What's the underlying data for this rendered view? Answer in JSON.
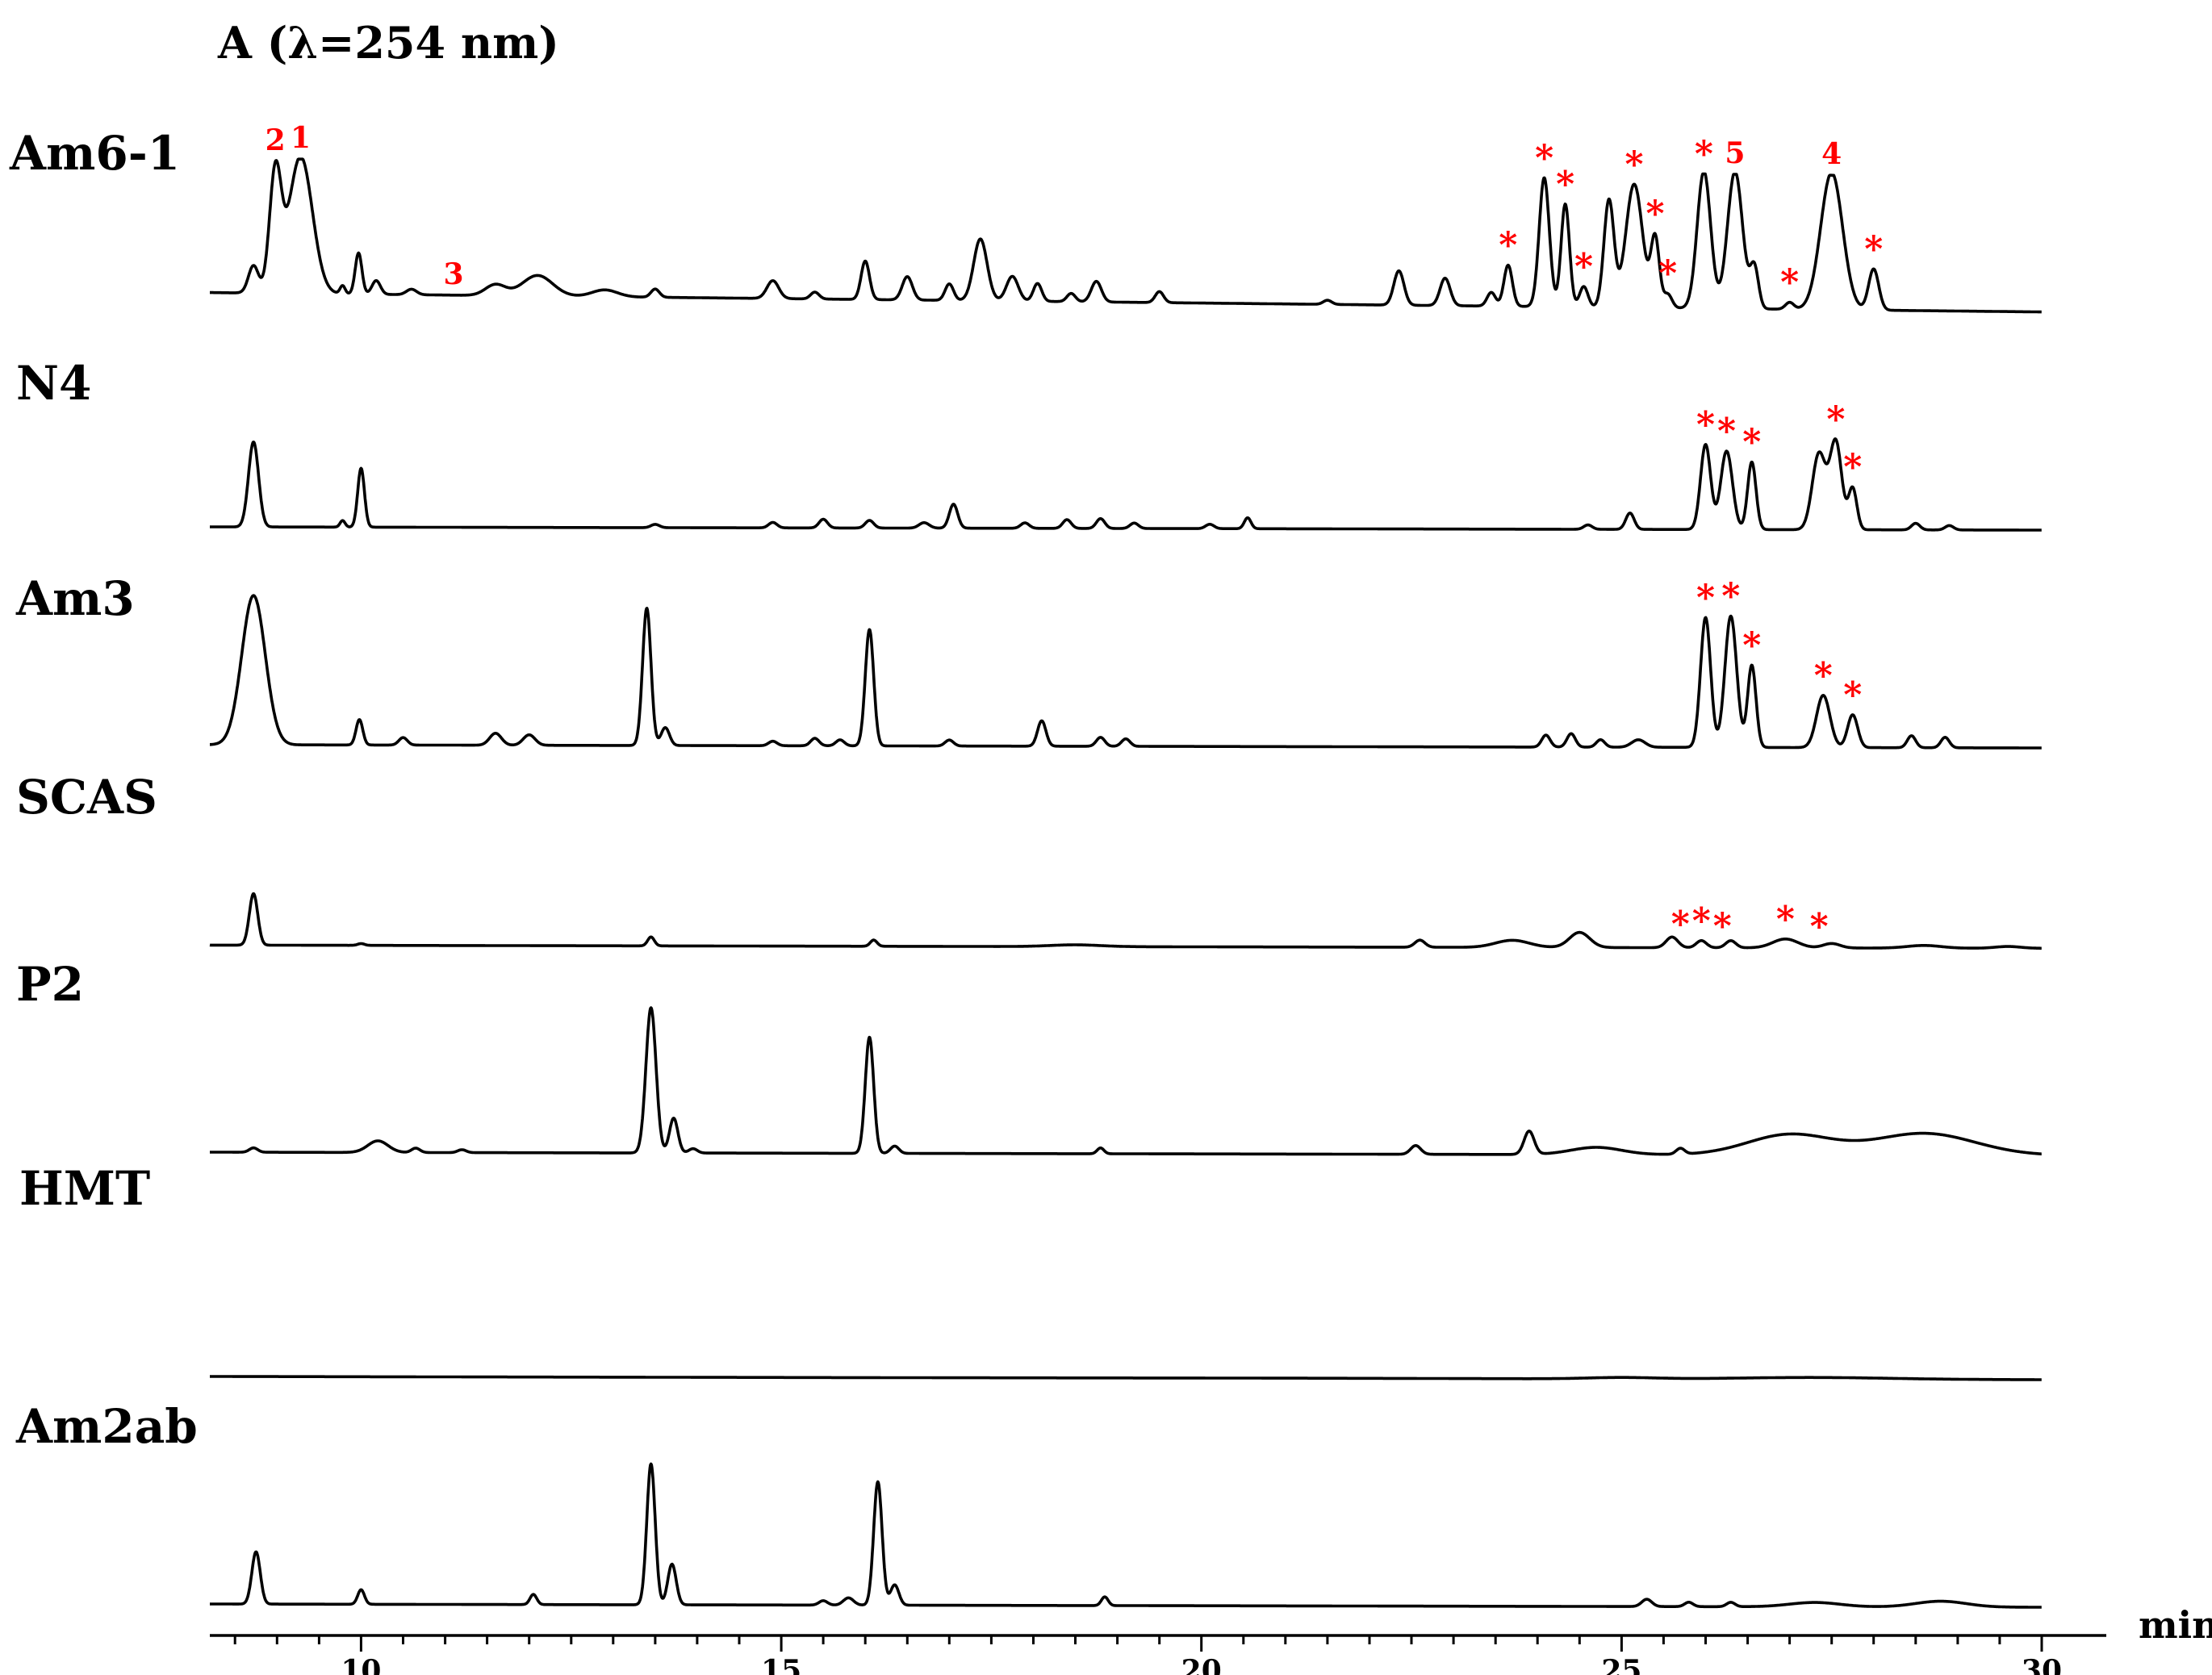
{
  "chart_data": {
    "type": "line",
    "title": "A (λ=254 nm)",
    "xlabel": "min",
    "ylabel": "",
    "xlim": [
      8.2,
      30
    ],
    "x_ticks": [
      10,
      15,
      20,
      25,
      30
    ],
    "x_tick_labels": [
      "10",
      "15",
      "20",
      "25",
      "30"
    ],
    "grid": false,
    "legend": "none",
    "colors": {
      "trace": "#000000",
      "annotation": "#ff0000"
    },
    "series": [
      {
        "name": "Am6-1",
        "baseline": 0.02,
        "peaks": [
          [
            8.72,
            0.2,
            0.06
          ],
          [
            8.98,
            0.86,
            0.07
          ],
          [
            9.28,
            1.0,
            0.14
          ],
          [
            9.78,
            0.06,
            0.03
          ],
          [
            9.97,
            0.3,
            0.04
          ],
          [
            10.18,
            0.1,
            0.05
          ],
          [
            10.6,
            0.04,
            0.06
          ],
          [
            11.6,
            0.08,
            0.12
          ],
          [
            12.1,
            0.15,
            0.18
          ],
          [
            12.9,
            0.05,
            0.15
          ],
          [
            13.5,
            0.06,
            0.05
          ],
          [
            14.9,
            0.13,
            0.07
          ],
          [
            15.4,
            0.05,
            0.05
          ],
          [
            16.0,
            0.28,
            0.05
          ],
          [
            16.5,
            0.17,
            0.06
          ],
          [
            17.0,
            0.12,
            0.05
          ],
          [
            17.37,
            0.45,
            0.08
          ],
          [
            17.75,
            0.18,
            0.07
          ],
          [
            18.05,
            0.13,
            0.05
          ],
          [
            18.45,
            0.06,
            0.05
          ],
          [
            18.75,
            0.15,
            0.06
          ],
          [
            19.5,
            0.08,
            0.05
          ],
          [
            21.5,
            0.03,
            0.05
          ],
          [
            22.35,
            0.25,
            0.06
          ],
          [
            22.9,
            0.2,
            0.06
          ],
          [
            23.45,
            0.1,
            0.05
          ],
          [
            23.65,
            0.3,
            0.05
          ],
          [
            24.08,
            0.94,
            0.06
          ],
          [
            24.33,
            0.75,
            0.05
          ],
          [
            24.55,
            0.15,
            0.05
          ],
          [
            24.85,
            0.78,
            0.06
          ],
          [
            25.15,
            0.9,
            0.1
          ],
          [
            25.4,
            0.5,
            0.05
          ],
          [
            25.55,
            0.1,
            0.05
          ],
          [
            25.98,
            1.0,
            0.08
          ],
          [
            26.35,
            1.0,
            0.09
          ],
          [
            26.58,
            0.3,
            0.05
          ],
          [
            27.0,
            0.05,
            0.05
          ],
          [
            27.5,
            1.0,
            0.13
          ],
          [
            28.0,
            0.3,
            0.06
          ]
        ]
      },
      {
        "name": "N4",
        "baseline": 0.0,
        "peaks": [
          [
            8.72,
            0.78,
            0.06
          ],
          [
            9.78,
            0.06,
            0.03
          ],
          [
            10.0,
            0.54,
            0.04
          ],
          [
            13.5,
            0.03,
            0.05
          ],
          [
            14.9,
            0.05,
            0.05
          ],
          [
            15.5,
            0.08,
            0.05
          ],
          [
            16.05,
            0.07,
            0.05
          ],
          [
            16.7,
            0.05,
            0.06
          ],
          [
            17.05,
            0.22,
            0.05
          ],
          [
            17.9,
            0.05,
            0.05
          ],
          [
            18.4,
            0.08,
            0.05
          ],
          [
            18.8,
            0.09,
            0.05
          ],
          [
            19.2,
            0.05,
            0.05
          ],
          [
            20.1,
            0.04,
            0.05
          ],
          [
            20.55,
            0.1,
            0.04
          ],
          [
            24.6,
            0.04,
            0.05
          ],
          [
            25.1,
            0.15,
            0.05
          ],
          [
            26.0,
            0.78,
            0.06
          ],
          [
            26.25,
            0.72,
            0.07
          ],
          [
            26.55,
            0.62,
            0.05
          ],
          [
            27.35,
            0.7,
            0.08
          ],
          [
            27.55,
            0.8,
            0.07
          ],
          [
            27.75,
            0.38,
            0.05
          ],
          [
            28.5,
            0.06,
            0.05
          ],
          [
            28.9,
            0.04,
            0.05
          ]
        ]
      },
      {
        "name": "Am3",
        "baseline": 0.0,
        "peaks": [
          [
            8.72,
            1.0,
            0.14
          ],
          [
            9.98,
            0.17,
            0.04
          ],
          [
            10.5,
            0.05,
            0.05
          ],
          [
            11.6,
            0.08,
            0.07
          ],
          [
            12.0,
            0.07,
            0.07
          ],
          [
            13.4,
            0.92,
            0.05
          ],
          [
            13.62,
            0.12,
            0.05
          ],
          [
            14.9,
            0.03,
            0.05
          ],
          [
            15.4,
            0.05,
            0.05
          ],
          [
            15.7,
            0.04,
            0.05
          ],
          [
            16.05,
            0.78,
            0.05
          ],
          [
            17.0,
            0.04,
            0.05
          ],
          [
            18.1,
            0.17,
            0.05
          ],
          [
            18.8,
            0.06,
            0.05
          ],
          [
            19.1,
            0.05,
            0.05
          ],
          [
            24.1,
            0.08,
            0.05
          ],
          [
            24.4,
            0.09,
            0.05
          ],
          [
            24.75,
            0.05,
            0.05
          ],
          [
            25.2,
            0.05,
            0.08
          ],
          [
            26.0,
            0.87,
            0.06
          ],
          [
            26.3,
            0.88,
            0.07
          ],
          [
            26.55,
            0.55,
            0.05
          ],
          [
            27.4,
            0.35,
            0.08
          ],
          [
            27.75,
            0.22,
            0.06
          ],
          [
            28.45,
            0.08,
            0.05
          ],
          [
            28.85,
            0.07,
            0.05
          ]
        ]
      },
      {
        "name": "SCAS",
        "baseline": 0.015,
        "peaks": [
          [
            8.72,
            0.58,
            0.05
          ],
          [
            10.0,
            0.02,
            0.04
          ],
          [
            13.45,
            0.1,
            0.04
          ],
          [
            16.1,
            0.07,
            0.04
          ],
          [
            18.5,
            0.02,
            0.3
          ],
          [
            22.6,
            0.08,
            0.06
          ],
          [
            23.7,
            0.08,
            0.2
          ],
          [
            24.5,
            0.17,
            0.12
          ],
          [
            25.6,
            0.12,
            0.07
          ],
          [
            25.95,
            0.08,
            0.06
          ],
          [
            26.3,
            0.08,
            0.06
          ],
          [
            26.95,
            0.1,
            0.15
          ],
          [
            27.5,
            0.05,
            0.1
          ],
          [
            28.6,
            0.03,
            0.2
          ],
          [
            29.6,
            0.02,
            0.15
          ]
        ]
      },
      {
        "name": "P2",
        "baseline": 0.0,
        "peaks": [
          [
            8.72,
            0.03,
            0.05
          ],
          [
            10.2,
            0.08,
            0.12
          ],
          [
            10.65,
            0.03,
            0.05
          ],
          [
            11.2,
            0.02,
            0.05
          ],
          [
            13.45,
            1.0,
            0.06
          ],
          [
            13.72,
            0.24,
            0.05
          ],
          [
            13.95,
            0.03,
            0.05
          ],
          [
            16.05,
            0.8,
            0.05
          ],
          [
            16.35,
            0.05,
            0.05
          ],
          [
            18.8,
            0.04,
            0.04
          ],
          [
            22.55,
            0.06,
            0.06
          ],
          [
            23.9,
            0.16,
            0.06
          ],
          [
            24.7,
            0.05,
            0.3
          ],
          [
            25.7,
            0.04,
            0.05
          ],
          [
            27.0,
            0.14,
            0.5
          ],
          [
            28.6,
            0.15,
            0.6
          ]
        ]
      },
      {
        "name": "HMT",
        "baseline": 0.0,
        "peaks": [
          [
            25.0,
            0.07,
            0.4
          ],
          [
            27.3,
            0.09,
            0.9
          ],
          [
            21.0,
            0.01,
            2.0
          ]
        ]
      },
      {
        "name": "Am2ab",
        "baseline": 0.0,
        "peaks": [
          [
            8.75,
            0.36,
            0.05
          ],
          [
            10.0,
            0.1,
            0.04
          ],
          [
            12.05,
            0.07,
            0.04
          ],
          [
            13.45,
            0.97,
            0.05
          ],
          [
            13.7,
            0.28,
            0.05
          ],
          [
            15.5,
            0.03,
            0.05
          ],
          [
            15.8,
            0.05,
            0.06
          ],
          [
            16.15,
            0.85,
            0.05
          ],
          [
            16.35,
            0.14,
            0.05
          ],
          [
            18.85,
            0.06,
            0.04
          ],
          [
            25.3,
            0.05,
            0.06
          ],
          [
            25.8,
            0.03,
            0.05
          ],
          [
            26.3,
            0.03,
            0.05
          ],
          [
            27.3,
            0.03,
            0.3
          ],
          [
            28.8,
            0.04,
            0.3
          ]
        ]
      }
    ],
    "annotations": [
      {
        "series": "Am6-1",
        "text": "2",
        "x": 8.98,
        "color": "#ff0000"
      },
      {
        "series": "Am6-1",
        "text": "1",
        "x": 9.28,
        "color": "#ff0000"
      },
      {
        "series": "Am6-1",
        "text": "3",
        "x": 11.1,
        "color": "#ff0000"
      },
      {
        "series": "Am6-1",
        "text": "*",
        "x": 23.65,
        "color": "#ff0000"
      },
      {
        "series": "Am6-1",
        "text": "*",
        "x": 24.08,
        "color": "#ff0000"
      },
      {
        "series": "Am6-1",
        "text": "*",
        "x": 24.33,
        "color": "#ff0000"
      },
      {
        "series": "Am6-1",
        "text": "*",
        "x": 24.55,
        "color": "#ff0000"
      },
      {
        "series": "Am6-1",
        "text": "*",
        "x": 25.15,
        "color": "#ff0000"
      },
      {
        "series": "Am6-1",
        "text": "*",
        "x": 25.4,
        "color": "#ff0000"
      },
      {
        "series": "Am6-1",
        "text": "*",
        "x": 25.55,
        "color": "#ff0000"
      },
      {
        "series": "Am6-1",
        "text": "*",
        "x": 25.98,
        "color": "#ff0000"
      },
      {
        "series": "Am6-1",
        "text": "5",
        "x": 26.35,
        "color": "#ff0000"
      },
      {
        "series": "Am6-1",
        "text": "*",
        "x": 27.0,
        "color": "#ff0000"
      },
      {
        "series": "Am6-1",
        "text": "4",
        "x": 27.5,
        "color": "#ff0000"
      },
      {
        "series": "Am6-1",
        "text": "*",
        "x": 28.0,
        "color": "#ff0000"
      },
      {
        "series": "N4",
        "text": "*",
        "x": 26.0,
        "color": "#ff0000"
      },
      {
        "series": "N4",
        "text": "*",
        "x": 26.25,
        "color": "#ff0000"
      },
      {
        "series": "N4",
        "text": "*",
        "x": 26.55,
        "color": "#ff0000"
      },
      {
        "series": "N4",
        "text": "*",
        "x": 27.55,
        "color": "#ff0000"
      },
      {
        "series": "N4",
        "text": "*",
        "x": 27.75,
        "color": "#ff0000"
      },
      {
        "series": "Am3",
        "text": "*",
        "x": 26.0,
        "color": "#ff0000"
      },
      {
        "series": "Am3",
        "text": "*",
        "x": 26.3,
        "color": "#ff0000"
      },
      {
        "series": "Am3",
        "text": "*",
        "x": 26.55,
        "color": "#ff0000"
      },
      {
        "series": "Am3",
        "text": "*",
        "x": 27.4,
        "color": "#ff0000"
      },
      {
        "series": "Am3",
        "text": "*",
        "x": 27.75,
        "color": "#ff0000"
      },
      {
        "series": "SCAS",
        "text": "*",
        "x": 25.7,
        "color": "#ff0000"
      },
      {
        "series": "SCAS",
        "text": "*",
        "x": 25.95,
        "color": "#ff0000"
      },
      {
        "series": "SCAS",
        "text": "*",
        "x": 26.2,
        "color": "#ff0000"
      },
      {
        "series": "SCAS",
        "text": "*",
        "x": 26.95,
        "color": "#ff0000"
      },
      {
        "series": "SCAS",
        "text": "*",
        "x": 27.35,
        "color": "#ff0000"
      }
    ]
  }
}
